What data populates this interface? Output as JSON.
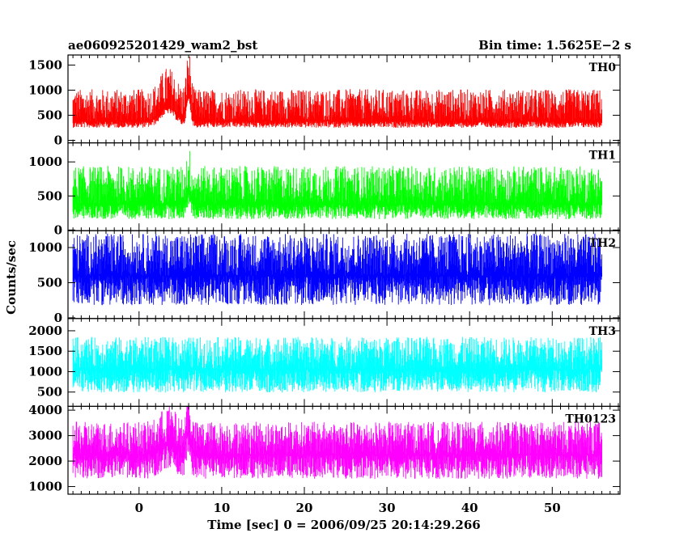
{
  "chart_data": {
    "type": "line",
    "title_left": "ae060925201429_wam2_bst",
    "title_right": "Bin time: 1.5625E−2 s",
    "xlabel": "Time [sec] 0 = 2006/09/25 20:14:29.266",
    "ylabel": "Counts/sec",
    "xlim": [
      -8.6,
      58.2
    ],
    "x_ticks": [
      0,
      10,
      20,
      30,
      40,
      50
    ],
    "x_data_range": [
      -8,
      56
    ],
    "grid": false,
    "panels": [
      {
        "name": "TH0",
        "color": "#ff0000",
        "ylim": [
          -50,
          1700
        ],
        "y_ticks": [
          0,
          500,
          1000,
          1500
        ],
        "baseline": 380,
        "noise_low": 130,
        "noise_high": 640,
        "features": [
          {
            "x": 3.5,
            "width": 0.9,
            "amplitude": 280
          },
          {
            "x": 6.0,
            "width": 0.25,
            "amplitude": 500
          }
        ]
      },
      {
        "name": "TH1",
        "color": "#00ff00",
        "ylim": [
          -10,
          1280
        ],
        "y_ticks": [
          0,
          500,
          1000
        ],
        "baseline": 380,
        "noise_low": 220,
        "noise_high": 560,
        "features": [
          {
            "x": 6.0,
            "width": 0.25,
            "amplitude": 180
          }
        ]
      },
      {
        "name": "TH2",
        "color": "#0000ff",
        "ylim": [
          -10,
          1240
        ],
        "y_ticks": [
          0,
          500,
          1000
        ],
        "baseline": 600,
        "noise_low": 420,
        "noise_high": 600,
        "features": []
      },
      {
        "name": "TH3",
        "color": "#00ffff",
        "ylim": [
          150,
          2300
        ],
        "y_ticks": [
          500,
          1000,
          1500,
          2000
        ],
        "baseline": 1050,
        "noise_low": 560,
        "noise_high": 800,
        "features": []
      },
      {
        "name": "TH0123",
        "color": "#ff00ff",
        "ylim": [
          700,
          4150
        ],
        "y_ticks": [
          1000,
          2000,
          3000,
          4000
        ],
        "baseline": 2250,
        "noise_low": 950,
        "noise_high": 1300,
        "features": [
          {
            "x": 3.5,
            "width": 0.9,
            "amplitude": 400
          },
          {
            "x": 6.0,
            "width": 0.25,
            "amplitude": 900
          }
        ]
      }
    ]
  }
}
